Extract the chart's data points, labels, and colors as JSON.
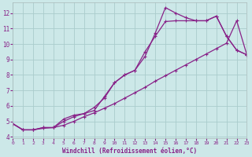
{
  "xlabel": "Windchill (Refroidissement éolien,°C)",
  "line_color": "#882288",
  "bg_color": "#cce8e8",
  "grid_color": "#aacccc",
  "x_ticks": [
    0,
    1,
    2,
    3,
    4,
    5,
    6,
    7,
    8,
    9,
    10,
    11,
    12,
    13,
    14,
    15,
    16,
    17,
    18,
    19,
    20,
    21,
    22,
    23
  ],
  "y_ticks": [
    4,
    5,
    6,
    7,
    8,
    9,
    10,
    11,
    12
  ],
  "xlim": [
    0,
    23
  ],
  "ylim": [
    3.9,
    12.7
  ],
  "line1_x": [
    0,
    1,
    2,
    3,
    4,
    5,
    6,
    7,
    8,
    9,
    10,
    11,
    12,
    13,
    14,
    15,
    16,
    17,
    18,
    19,
    20,
    21,
    22,
    23
  ],
  "line1_y": [
    4.85,
    4.45,
    4.45,
    4.6,
    4.6,
    5.15,
    5.4,
    5.5,
    5.7,
    6.6,
    7.5,
    8.0,
    8.3,
    9.5,
    10.5,
    11.45,
    11.5,
    11.5,
    11.5,
    11.5,
    11.8,
    10.5,
    9.6,
    9.3
  ],
  "line2_x": [
    0,
    1,
    2,
    3,
    4,
    5,
    6,
    7,
    8,
    9,
    10,
    11,
    12,
    13,
    14,
    15,
    16,
    17,
    18,
    19,
    20,
    21,
    22,
    23
  ],
  "line2_y": [
    4.85,
    4.45,
    4.45,
    4.6,
    4.6,
    5.0,
    5.3,
    5.5,
    5.9,
    6.5,
    7.5,
    8.0,
    8.3,
    9.2,
    10.7,
    12.35,
    12.0,
    11.7,
    11.5,
    11.5,
    11.8,
    10.5,
    9.6,
    9.3
  ],
  "line3_x": [
    0,
    1,
    2,
    3,
    4,
    5,
    6,
    7,
    8,
    9,
    10,
    11,
    12,
    13,
    14,
    15,
    16,
    17,
    18,
    19,
    20,
    21,
    22,
    23
  ],
  "line3_y": [
    4.85,
    4.45,
    4.45,
    4.55,
    4.6,
    4.75,
    5.0,
    5.3,
    5.55,
    5.85,
    6.15,
    6.5,
    6.85,
    7.2,
    7.6,
    7.95,
    8.3,
    8.65,
    9.0,
    9.35,
    9.7,
    10.05,
    11.5,
    9.3
  ],
  "marker": "+"
}
